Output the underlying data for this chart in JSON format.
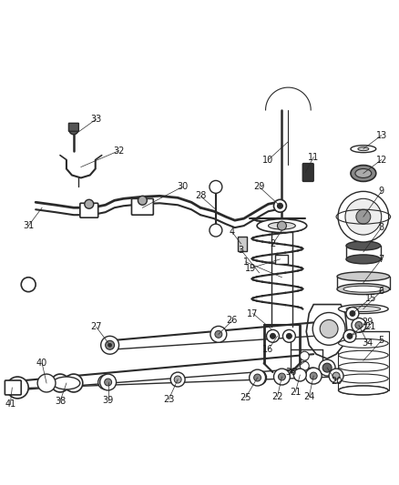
{
  "bg_color": "#ffffff",
  "line_color": "#2a2a2a",
  "label_color": "#1a1a1a",
  "label_fontsize": 7.0,
  "fig_width": 4.39,
  "fig_height": 5.33,
  "dpi": 100
}
